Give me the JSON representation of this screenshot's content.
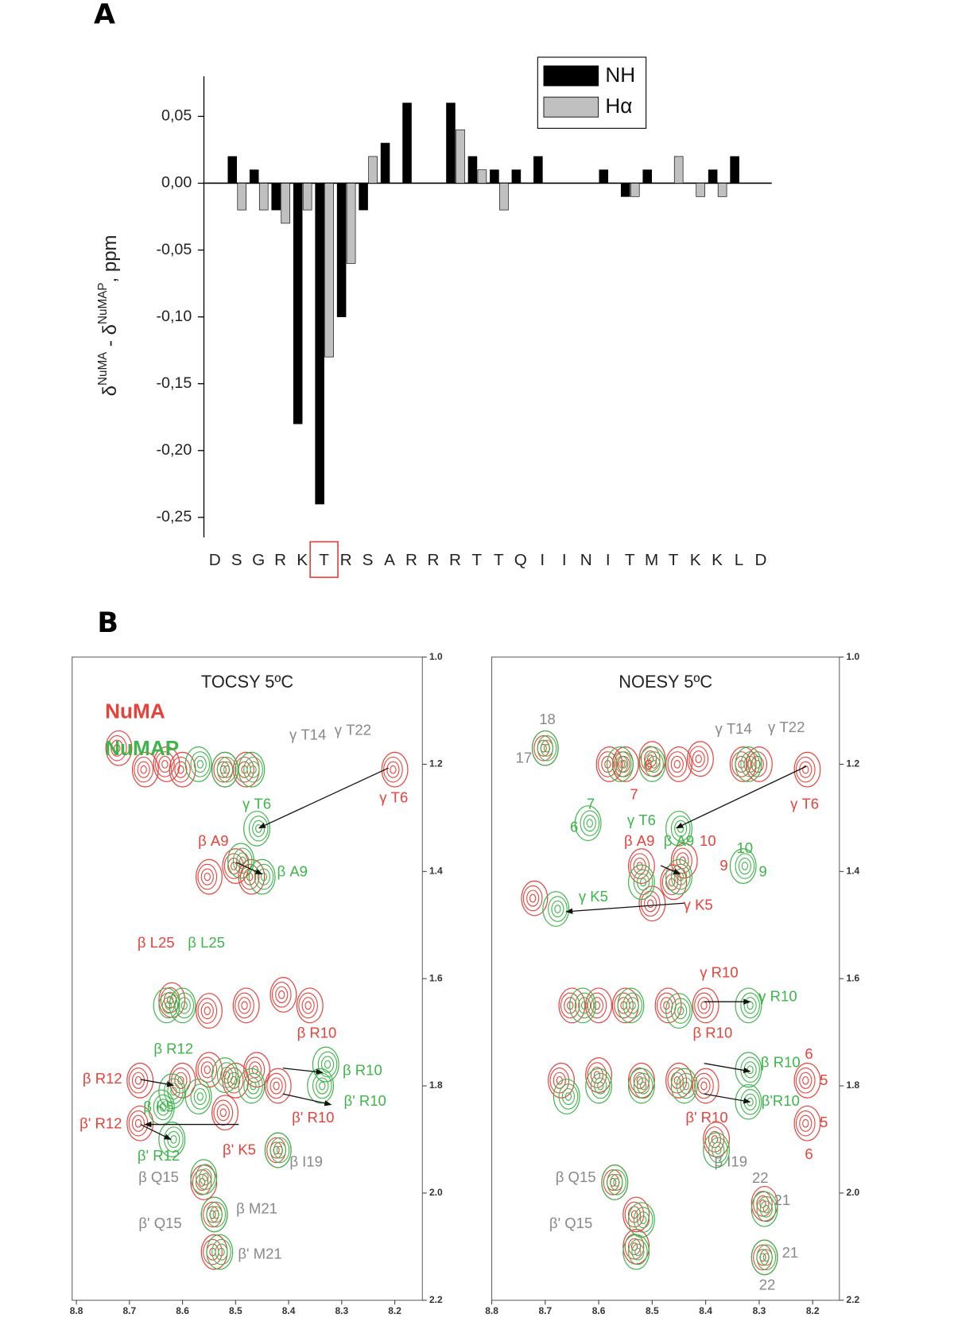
{
  "chart_data": [
    {
      "type": "bar",
      "panel": "A",
      "categories": [
        "D",
        "S",
        "G",
        "R",
        "K",
        "T",
        "R",
        "S",
        "A",
        "R",
        "R",
        "R",
        "T",
        "T",
        "Q",
        "I",
        "I",
        "N",
        "I",
        "T",
        "M",
        "T",
        "K",
        "K",
        "L",
        "D"
      ],
      "series": [
        {
          "name": "NH",
          "color": "#000000",
          "values": [
            null,
            0.02,
            0.01,
            -0.02,
            -0.18,
            -0.24,
            -0.1,
            -0.02,
            0.03,
            0.06,
            null,
            0.06,
            0.02,
            0.01,
            0.01,
            0.02,
            null,
            null,
            0.01,
            -0.01,
            0.01,
            0,
            0,
            0.01,
            0.02,
            null
          ]
        },
        {
          "name": "Hα",
          "color": "#c0c0c0",
          "values": [
            null,
            -0.02,
            -0.02,
            -0.03,
            -0.02,
            -0.13,
            -0.06,
            0.02,
            0,
            0,
            null,
            0.04,
            0.01,
            -0.02,
            0,
            0,
            null,
            null,
            0,
            -0.01,
            0,
            0.02,
            -0.01,
            -0.01,
            0,
            null
          ]
        }
      ],
      "ylim": [
        -0.265,
        0.08
      ],
      "yticks": [
        {
          "value": -0.25,
          "label": "-0,25"
        },
        {
          "value": -0.2,
          "label": "-0,20"
        },
        {
          "value": -0.15,
          "label": "-0,15"
        },
        {
          "value": -0.1,
          "label": "-0,10"
        },
        {
          "value": -0.05,
          "label": "-0,05"
        },
        {
          "value": 0,
          "label": "0,00"
        },
        {
          "value": 0.05,
          "label": "0,05"
        }
      ],
      "ylabel": [
        "δ",
        "NuMA",
        " - δ",
        "NuMAP",
        ", ppm"
      ],
      "highlight_index": 5,
      "highlight_color": "#e8413a",
      "legend": "top-right"
    },
    {
      "type": "contour",
      "panel": "B",
      "title": "TOCSY 5ºC",
      "xlim": [
        8.808,
        8.148
      ],
      "ylim": [
        1.0,
        2.2
      ],
      "xticks": [
        8.8,
        8.7,
        8.6,
        8.5,
        8.4,
        8.3,
        8.2
      ],
      "yticks": [
        {
          "value": 1,
          "label": "1.0"
        },
        1.2,
        1.4,
        1.6,
        1.8,
        {
          "value": 2,
          "label": "2.0"
        },
        2.2
      ],
      "legend": true,
      "series": [
        {
          "name": "NuMA",
          "color": "#e8413a",
          "peaks": {
            "x": [
              8.72,
              8.67,
              8.63,
              8.6,
              8.52,
              8.48,
              8.2,
              8.5,
              8.55,
              8.47,
              8.62,
              8.55,
              8.48,
              8.41,
              8.36,
              8.68,
              8.68,
              8.55,
              8.5,
              8.46,
              8.42,
              8.42,
              8.56,
              8.54,
              8.54,
              8.6,
              8.52
            ],
            "y": [
              1.17,
              1.21,
              1.2,
              1.21,
              1.21,
              1.21,
              1.21,
              1.39,
              1.41,
              1.41,
              1.64,
              1.66,
              1.65,
              1.63,
              1.65,
              1.79,
              1.87,
              1.77,
              1.79,
              1.77,
              1.8,
              1.92,
              1.98,
              2.04,
              2.11,
              1.79,
              1.85
            ]
          }
        },
        {
          "name": "NuMAP",
          "color": "#3db54a",
          "peaks": {
            "x": [
              8.57,
              8.52,
              8.47,
              8.46,
              8.45,
              8.49,
              8.6,
              8.63,
              8.34,
              8.33,
              8.62,
              8.62,
              8.64,
              8.52,
              8.47,
              8.42,
              8.56,
              8.54,
              8.53,
              8.57
            ],
            "y": [
              1.2,
              1.21,
              1.21,
              1.32,
              1.41,
              1.38,
              1.65,
              1.65,
              1.8,
              1.76,
              1.81,
              1.9,
              1.84,
              1.78,
              1.8,
              1.92,
              1.97,
              2.04,
              2.11,
              1.82
            ]
          }
        }
      ],
      "annotations": [
        {
          "text": "γ T14",
          "x": 8.364,
          "y": 1.147,
          "color": "#888888"
        },
        {
          "text": "γ T22",
          "x": 8.279,
          "y": 1.138,
          "color": "#888888"
        },
        {
          "text": "γ T6",
          "x": 8.202,
          "y": 1.264,
          "color": "#e8413a"
        },
        {
          "text": "γ T6",
          "x": 8.46,
          "y": 1.276,
          "color": "#3db54a"
        },
        {
          "text": "β A9",
          "x": 8.542,
          "y": 1.345,
          "color": "#e8413a"
        },
        {
          "text": "β A9",
          "x": 8.393,
          "y": 1.402,
          "color": "#3db54a"
        },
        {
          "text": "β L25",
          "x": 8.65,
          "y": 1.535,
          "color": "#e8413a"
        },
        {
          "text": "β L25",
          "x": 8.555,
          "y": 1.535,
          "color": "#3db54a"
        },
        {
          "text": "β R10",
          "x": 8.347,
          "y": 1.703,
          "color": "#e8413a"
        },
        {
          "text": "β R12",
          "x": 8.617,
          "y": 1.733,
          "color": "#3db54a"
        },
        {
          "text": "β R10",
          "x": 8.261,
          "y": 1.773,
          "color": "#3db54a"
        },
        {
          "text": "β R12",
          "x": 8.751,
          "y": 1.788,
          "color": "#e8413a"
        },
        {
          "text": "β' R10",
          "x": 8.256,
          "y": 1.83,
          "color": "#3db54a"
        },
        {
          "text": "β K5",
          "x": 8.645,
          "y": 1.841,
          "color": "#3db54a"
        },
        {
          "text": "β' R10",
          "x": 8.354,
          "y": 1.861,
          "color": "#e8413a"
        },
        {
          "text": "β' R12",
          "x": 8.754,
          "y": 1.872,
          "color": "#e8413a"
        },
        {
          "text": "β' K5",
          "x": 8.493,
          "y": 1.921,
          "color": "#e8413a"
        },
        {
          "text": "β I19",
          "x": 8.367,
          "y": 1.943,
          "color": "#888888"
        },
        {
          "text": "β' R12",
          "x": 8.645,
          "y": 1.932,
          "color": "#3db54a"
        },
        {
          "text": "β Q15",
          "x": 8.645,
          "y": 1.972,
          "color": "#888888"
        },
        {
          "text": "β M21",
          "x": 8.46,
          "y": 2.031,
          "color": "#888888"
        },
        {
          "text": "β' Q15",
          "x": 8.642,
          "y": 2.058,
          "color": "#888888"
        },
        {
          "text": "β' M21",
          "x": 8.454,
          "y": 2.115,
          "color": "#888888"
        }
      ],
      "arrows": [
        {
          "x1": 8.212,
          "y1": 1.207,
          "x2": 8.456,
          "y2": 1.319
        },
        {
          "x1": 8.499,
          "y1": 1.383,
          "x2": 8.45,
          "y2": 1.405
        },
        {
          "x1": 8.679,
          "y1": 1.788,
          "x2": 8.617,
          "y2": 1.799
        },
        {
          "x1": 8.411,
          "y1": 1.767,
          "x2": 8.336,
          "y2": 1.775
        },
        {
          "x1": 8.411,
          "y1": 1.815,
          "x2": 8.32,
          "y2": 1.835
        },
        {
          "x1": 8.494,
          "y1": 1.872,
          "x2": 8.671,
          "y2": 1.872
        },
        {
          "x1": 8.679,
          "y1": 1.872,
          "x2": 8.622,
          "y2": 1.9
        }
      ]
    },
    {
      "type": "contour",
      "title": "NOESY 5ºC",
      "xlim": [
        8.8,
        8.15
      ],
      "ylim": [
        1.0,
        2.2
      ],
      "xticks": [
        8.8,
        8.7,
        8.6,
        8.5,
        8.4,
        8.3,
        8.2
      ],
      "yticks": [
        {
          "value": 1,
          "label": "1.0"
        },
        1.2,
        1.4,
        1.6,
        1.8,
        {
          "value": 2,
          "label": "2.0"
        },
        2.2
      ],
      "legend": false,
      "series": [
        {
          "name": "NuMA",
          "color": "#e8413a",
          "peaks": {
            "x": [
              8.7,
              8.58,
              8.55,
              8.5,
              8.45,
              8.41,
              8.33,
              8.3,
              8.21,
              8.52,
              8.46,
              8.5,
              8.44,
              8.72,
              8.65,
              8.6,
              8.55,
              8.47,
              8.4,
              8.67,
              8.6,
              8.52,
              8.45,
              8.4,
              8.38,
              8.21,
              8.21,
              8.57,
              8.53,
              8.53,
              8.29,
              8.29
            ],
            "y": [
              1.17,
              1.2,
              1.2,
              1.19,
              1.2,
              1.19,
              1.2,
              1.2,
              1.21,
              1.39,
              1.42,
              1.46,
              1.38,
              1.45,
              1.65,
              1.65,
              1.65,
              1.65,
              1.65,
              1.79,
              1.78,
              1.79,
              1.79,
              1.8,
              1.9,
              1.79,
              1.87,
              1.98,
              2.04,
              2.1,
              2.02,
              2.12
            ]
          }
        },
        {
          "name": "NuMAP",
          "color": "#3db54a",
          "peaks": {
            "x": [
              8.7,
              8.56,
              8.5,
              8.32,
              8.45,
              8.62,
              8.45,
              8.33,
              8.68,
              8.52,
              8.32,
              8.63,
              8.54,
              8.45,
              8.32,
              8.32,
              8.6,
              8.52,
              8.44,
              8.66,
              8.57,
              8.52,
              8.53,
              8.29,
              8.29,
              8.38
            ],
            "y": [
              1.17,
              1.2,
              1.2,
              1.2,
              1.32,
              1.31,
              1.41,
              1.39,
              1.47,
              1.42,
              1.65,
              1.65,
              1.65,
              1.66,
              1.77,
              1.83,
              1.8,
              1.8,
              1.8,
              1.82,
              1.98,
              2.05,
              2.11,
              2.03,
              2.12,
              1.92
            ]
          }
        }
      ],
      "annotations": [
        {
          "text": "18",
          "x": 8.696,
          "y": 1.118,
          "color": "#888888"
        },
        {
          "text": "17",
          "x": 8.74,
          "y": 1.19,
          "color": "#888888"
        },
        {
          "text": "γ T14",
          "x": 8.348,
          "y": 1.136,
          "color": "#888888"
        },
        {
          "text": "γ T22",
          "x": 8.249,
          "y": 1.133,
          "color": "#888888"
        },
        {
          "text": "6",
          "x": 8.507,
          "y": 1.203,
          "color": "#e8413a"
        },
        {
          "text": "7",
          "x": 8.534,
          "y": 1.258,
          "color": "#e8413a"
        },
        {
          "text": "γ T6",
          "x": 8.215,
          "y": 1.276,
          "color": "#e8413a"
        },
        {
          "text": "7",
          "x": 8.615,
          "y": 1.276,
          "color": "#3db54a"
        },
        {
          "text": "6",
          "x": 8.646,
          "y": 1.319,
          "color": "#3db54a"
        },
        {
          "text": "γ T6",
          "x": 8.52,
          "y": 1.306,
          "color": "#3db54a"
        },
        {
          "text": "β A9",
          "x": 8.524,
          "y": 1.345,
          "color": "#e8413a"
        },
        {
          "text": "β A9",
          "x": 8.45,
          "y": 1.345,
          "color": "#3db54a"
        },
        {
          "text": "10",
          "x": 8.396,
          "y": 1.345,
          "color": "#e8413a"
        },
        {
          "text": "10",
          "x": 8.327,
          "y": 1.358,
          "color": "#3db54a"
        },
        {
          "text": "9",
          "x": 8.366,
          "y": 1.391,
          "color": "#e8413a"
        },
        {
          "text": "9",
          "x": 8.293,
          "y": 1.402,
          "color": "#3db54a"
        },
        {
          "text": "γ K5",
          "x": 8.61,
          "y": 1.449,
          "color": "#3db54a"
        },
        {
          "text": "γ K5",
          "x": 8.414,
          "y": 1.464,
          "color": "#e8413a"
        },
        {
          "text": "γ R10",
          "x": 8.375,
          "y": 1.59,
          "color": "#e8413a"
        },
        {
          "text": "γ R10",
          "x": 8.265,
          "y": 1.635,
          "color": "#3db54a"
        },
        {
          "text": "β R10",
          "x": 8.387,
          "y": 1.703,
          "color": "#e8413a"
        },
        {
          "text": "6",
          "x": 8.207,
          "y": 1.742,
          "color": "#e8413a"
        },
        {
          "text": "β R10",
          "x": 8.26,
          "y": 1.758,
          "color": "#3db54a"
        },
        {
          "text": "5",
          "x": 8.179,
          "y": 1.791,
          "color": "#e8413a"
        },
        {
          "text": "β'R10",
          "x": 8.26,
          "y": 1.83,
          "color": "#3db54a"
        },
        {
          "text": "β' R10",
          "x": 8.398,
          "y": 1.861,
          "color": "#e8413a"
        },
        {
          "text": "5",
          "x": 8.179,
          "y": 1.87,
          "color": "#e8413a"
        },
        {
          "text": "6",
          "x": 8.207,
          "y": 1.929,
          "color": "#e8413a"
        },
        {
          "text": "β I19",
          "x": 8.353,
          "y": 1.943,
          "color": "#888888"
        },
        {
          "text": "22",
          "x": 8.298,
          "y": 1.974,
          "color": "#888888"
        },
        {
          "text": "21",
          "x": 8.257,
          "y": 2.015,
          "color": "#888888"
        },
        {
          "text": "β Q15",
          "x": 8.643,
          "y": 1.972,
          "color": "#888888"
        },
        {
          "text": "β' Q15",
          "x": 8.652,
          "y": 2.058,
          "color": "#888888"
        },
        {
          "text": "21",
          "x": 8.242,
          "y": 2.113,
          "color": "#888888"
        },
        {
          "text": "22",
          "x": 8.285,
          "y": 2.173,
          "color": "#888888"
        }
      ],
      "arrows": [
        {
          "x1": 8.212,
          "y1": 1.204,
          "x2": 8.455,
          "y2": 1.319
        },
        {
          "x1": 8.484,
          "y1": 1.389,
          "x2": 8.448,
          "y2": 1.405
        },
        {
          "x1": 8.439,
          "y1": 1.459,
          "x2": 8.661,
          "y2": 1.475
        },
        {
          "x1": 8.403,
          "y1": 1.643,
          "x2": 8.317,
          "y2": 1.643
        },
        {
          "x1": 8.403,
          "y1": 1.758,
          "x2": 8.317,
          "y2": 1.773
        },
        {
          "x1": 8.403,
          "y1": 1.815,
          "x2": 8.317,
          "y2": 1.83
        }
      ]
    }
  ]
}
